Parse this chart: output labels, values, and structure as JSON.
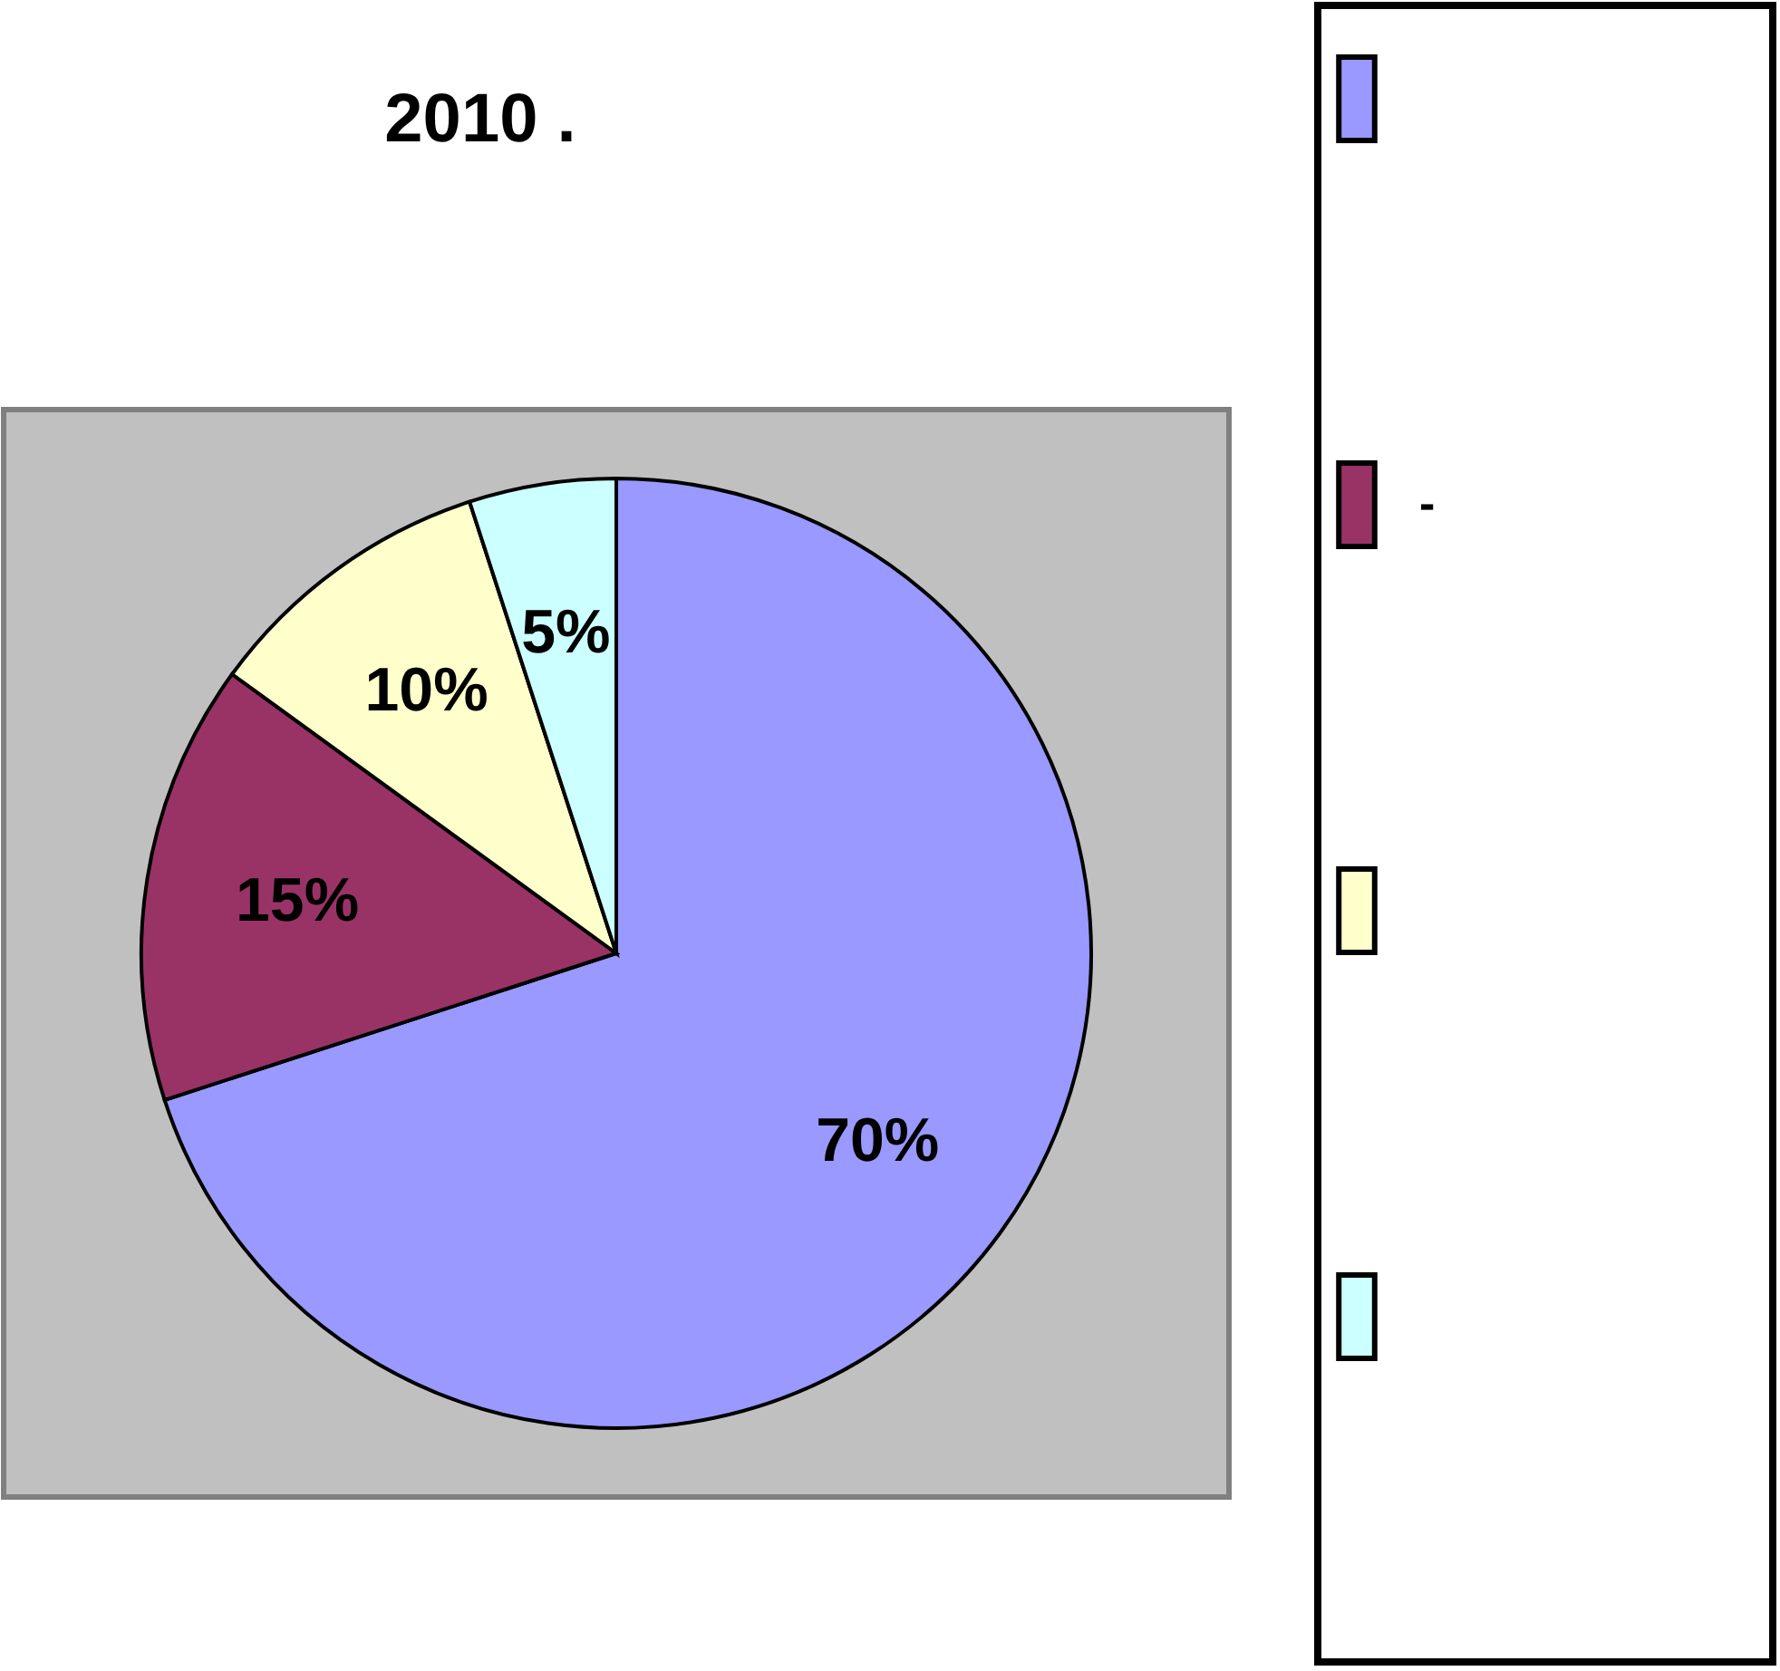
{
  "chart_data": {
    "type": "pie",
    "title": "2010 .",
    "categories": [
      null,
      "-",
      null,
      null
    ],
    "values": [
      70,
      15,
      10,
      5
    ],
    "colors": [
      "#9999ff",
      "#993366",
      "#ffffcc",
      "#ccffff"
    ],
    "value_labels": [
      "70%",
      "15%",
      "10%",
      "5%"
    ],
    "legend": "right"
  }
}
